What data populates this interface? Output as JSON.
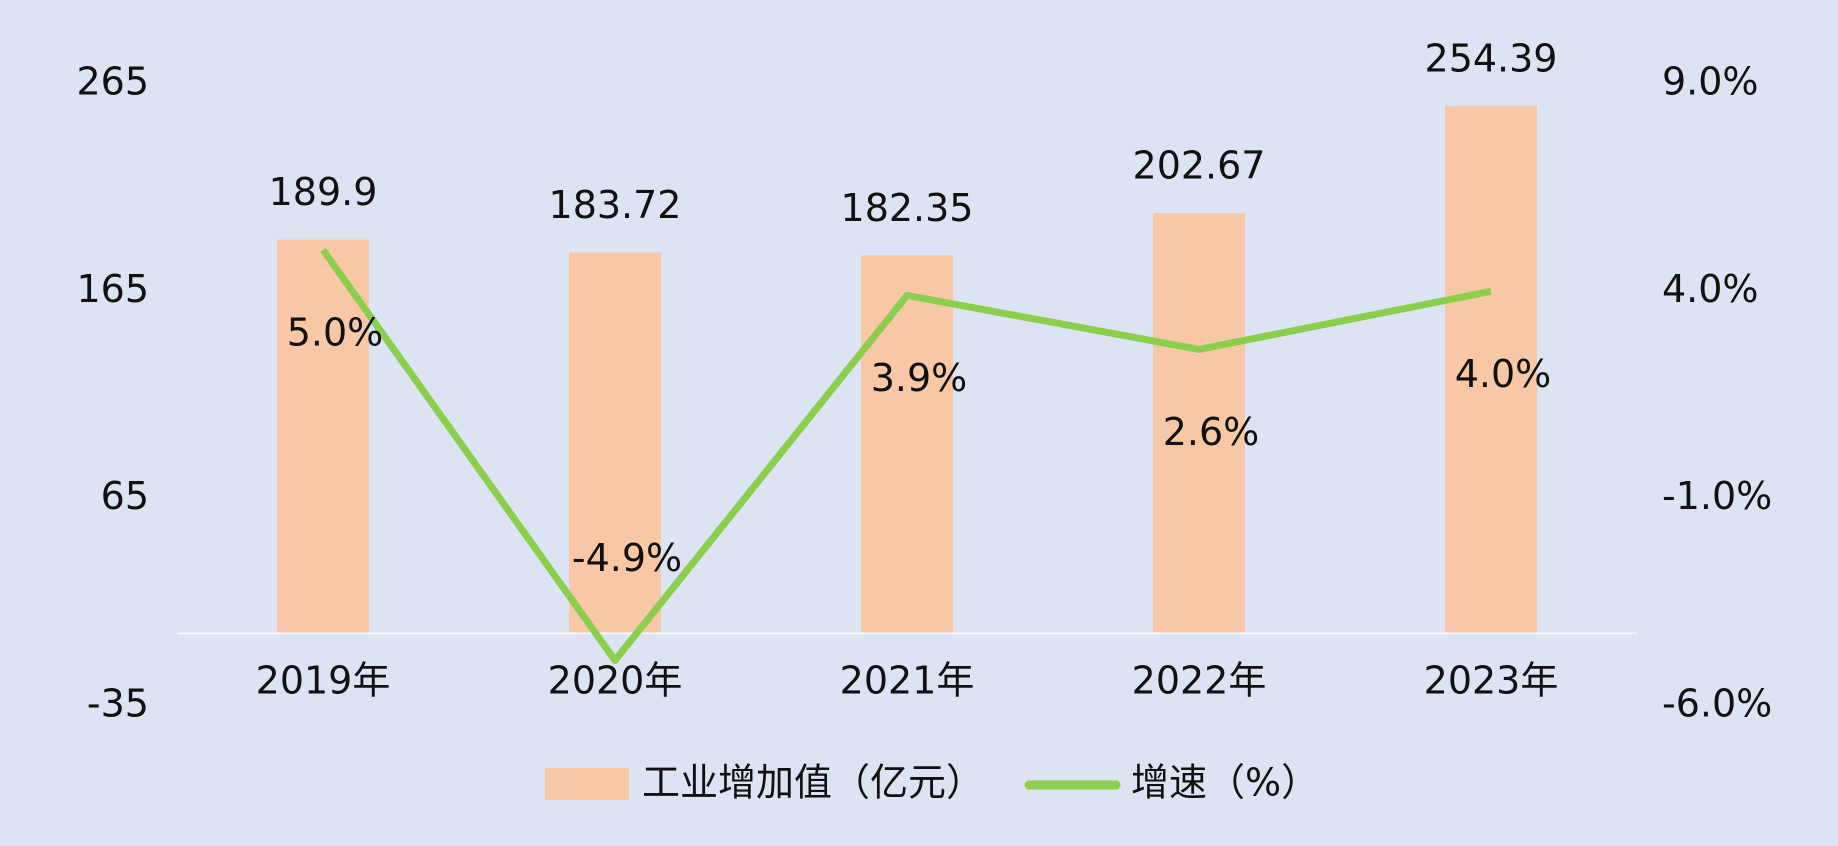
{
  "chart_data": {
    "type": "bar",
    "categories": [
      "2019年",
      "2020年",
      "2021年",
      "2022年",
      "2023年"
    ],
    "series": [
      {
        "name": "工业增加值（亿元）",
        "color": "#f8c8a6",
        "values": [
          189.9,
          183.72,
          182.35,
          202.67,
          254.39
        ]
      },
      {
        "name": "增速（%）",
        "color": "#8ccf4c",
        "type": "line",
        "axis": "y2",
        "values": [
          5.0,
          -4.9,
          3.9,
          2.6,
          4.0
        ],
        "value_labels": [
          "5.0%",
          "-4.9%",
          "3.9%",
          "2.6%",
          "4.0%"
        ]
      }
    ],
    "ylim": [
      -35,
      265
    ],
    "yticks": [
      -35,
      65,
      165,
      265
    ],
    "y2lim": [
      -6,
      9
    ],
    "y2ticks": [
      {
        "value": -6,
        "label": "-6.0%"
      },
      {
        "value": -1,
        "label": "-1.0%"
      },
      {
        "value": 4,
        "label": "4.0%"
      },
      {
        "value": 9,
        "label": "9.0%"
      }
    ],
    "legend": "bottom"
  }
}
